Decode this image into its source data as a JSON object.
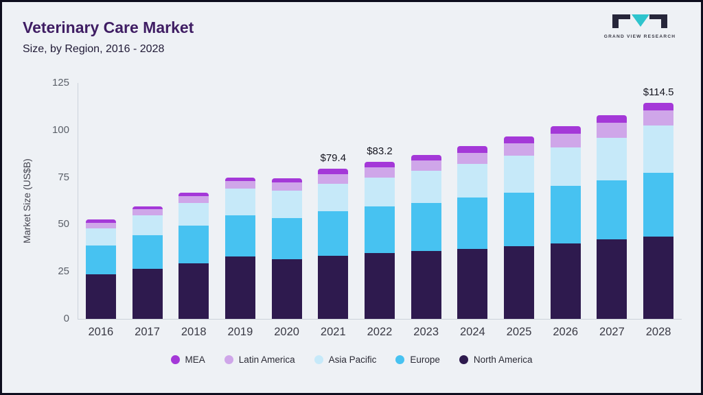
{
  "header": {
    "title": "Veterinary Care Market",
    "subtitle": "Size, by Region, 2016 - 2028"
  },
  "logo": {
    "text": "GRAND VIEW RESEARCH",
    "accent_color": "#2ec4cd",
    "dark_color": "#26263a"
  },
  "chart_data": {
    "type": "bar",
    "stacked": true,
    "title": "Veterinary Care Market Size, by Region, 2016 - 2028",
    "ylabel": "Market Size (US$B)",
    "ylim": [
      0,
      125
    ],
    "yticks": [
      0,
      25,
      50,
      75,
      100,
      125
    ],
    "grid": false,
    "legend_position": "bottom",
    "categories": [
      "2016",
      "2017",
      "2018",
      "2019",
      "2020",
      "2021",
      "2022",
      "2023",
      "2024",
      "2025",
      "2026",
      "2027",
      "2028"
    ],
    "series": [
      {
        "name": "North America",
        "color": "#2e1a4e",
        "values": [
          23.5,
          26.5,
          29.5,
          33,
          31.5,
          33.5,
          35,
          36,
          37,
          38.5,
          40,
          42,
          43.5
        ]
      },
      {
        "name": "Europe",
        "color": "#47c2f1",
        "values": [
          15.5,
          18,
          20,
          22,
          22,
          23.5,
          24.5,
          25.5,
          27.5,
          28.5,
          30.5,
          31.5,
          34
        ]
      },
      {
        "name": "Asia Pacific",
        "color": "#c6e9f9",
        "values": [
          9,
          10.5,
          12,
          14,
          14.5,
          14.5,
          15.5,
          17,
          17.5,
          19.5,
          20.5,
          22.5,
          25
        ]
      },
      {
        "name": "Latin America",
        "color": "#cfa6e9",
        "values": [
          3,
          3,
          3.5,
          4,
          4.5,
          5,
          5.2,
          5.5,
          6,
          6.5,
          7,
          8,
          8
        ]
      },
      {
        "name": "MEA",
        "color": "#a438d8",
        "values": [
          1.5,
          1.5,
          2,
          2,
          2,
          2.9,
          3,
          3,
          3.5,
          3.5,
          4,
          4,
          4
        ]
      }
    ],
    "totals": [
      52.5,
      59.5,
      67,
      75,
      74.5,
      79.4,
      83.2,
      87,
      91.5,
      96.5,
      102,
      108,
      114.5
    ],
    "annotations": [
      {
        "category": "2021",
        "label": "$79.4"
      },
      {
        "category": "2022",
        "label": "$83.2"
      },
      {
        "category": "2028",
        "label": "$114.5"
      }
    ],
    "legend": [
      {
        "label": "MEA",
        "color": "#a438d8"
      },
      {
        "label": "Latin America",
        "color": "#cfa6e9"
      },
      {
        "label": "Asia Pacific",
        "color": "#c6e9f9"
      },
      {
        "label": "Europe",
        "color": "#47c2f1"
      },
      {
        "label": "North America",
        "color": "#2e1a4e"
      }
    ]
  }
}
